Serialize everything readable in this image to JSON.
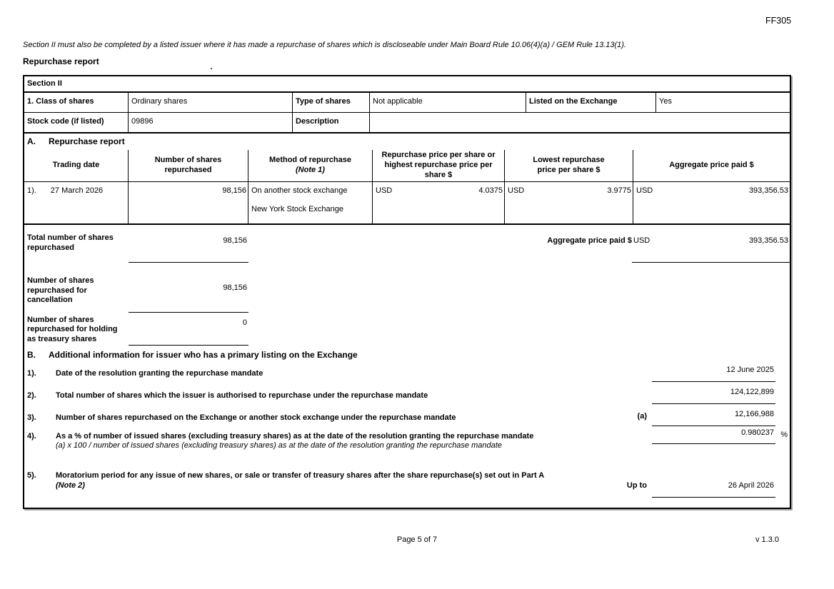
{
  "form_code": "FF305",
  "intro": "Section II must also be completed by a listed issuer where it has made a repurchase of shares which is discloseable under Main Board Rule 10.06(4)(a) / GEM Rule 13.13(1).",
  "title": "Repurchase report",
  "colors": {
    "border": "#000000",
    "background": "#ffffff"
  },
  "section2": {
    "label": "Section II",
    "class_of_shares_label": "1. Class of shares",
    "class_of_shares_value": "Ordinary shares",
    "type_of_shares_label": "Type of shares",
    "type_of_shares_value": "Not applicable",
    "listed_label": "Listed on the Exchange",
    "listed_value": "Yes",
    "stock_code_label": "Stock code (if listed)",
    "stock_code_value": "09896",
    "description_label": "Description",
    "description_value": ""
  },
  "part_a": {
    "heading_letter": "A.",
    "heading": "Repurchase report",
    "table": {
      "col_trading_date": "Trading date",
      "col_num_shares": "Number of shares repurchased",
      "col_method": "Method of repurchase",
      "col_method_note": "(Note 1)",
      "col_price_high": "Repurchase price per share or highest repurchase price per share $",
      "col_price_low": "Lowest repurchase price per share $",
      "col_aggregate": "Aggregate price paid $",
      "row": {
        "index": "1).",
        "trading_date": "27 March 2026",
        "num_shares": "98,156",
        "method_line1": "On another stock exchange",
        "method_line2": "New York Stock Exchange",
        "currency_high": "USD",
        "price_high": "4.0375",
        "currency_low": "USD",
        "price_low": "3.9775",
        "currency_agg": "USD",
        "aggregate": "393,356.53"
      }
    },
    "totals": {
      "total_shares_label": "Total number of shares repurchased",
      "total_shares_value": "98,156",
      "aggregate_label": "Aggregate price paid $",
      "aggregate_currency": "USD",
      "aggregate_value": "393,356.53",
      "cancel_label": "Number of shares repurchased for cancellation",
      "cancel_value": "98,156",
      "treasury_label": "Number of shares repurchased for holding as treasury shares",
      "treasury_value": "0"
    }
  },
  "part_b": {
    "heading_letter": "B.",
    "heading": "Additional information for issuer who has a primary listing on the Exchange",
    "items": [
      {
        "num": "1).",
        "label": "Date of the resolution granting the repurchase mandate",
        "value": "12 June 2025"
      },
      {
        "num": "2).",
        "label": "Total number of shares which the issuer is authorised to repurchase under the repurchase mandate",
        "value": "124,122,899"
      },
      {
        "num": "3).",
        "label": "Number of shares repurchased on the Exchange or another stock exchange under the repurchase mandate",
        "prefix": "(a)",
        "value": "12,166,988"
      },
      {
        "num": "4).",
        "label": "As a % of number of issued shares (excluding treasury shares) as at the date of the resolution granting the repurchase mandate",
        "sublabel": "(a) x 100 / number of issued shares (excluding treasury shares) as at the date of the resolution granting the repurchase mandate",
        "value": "0.980237",
        "suffix": "%"
      },
      {
        "num": "5).",
        "label": "Moratorium period for any issue of new shares, or sale or transfer of treasury shares after the share repurchase(s) set out in Part A",
        "sublabel": "(Note 2)",
        "prefix": "Up to",
        "value": "26 April 2026"
      }
    ]
  },
  "footer": {
    "page": "Page 5 of 7",
    "version": "v 1.3.0"
  }
}
